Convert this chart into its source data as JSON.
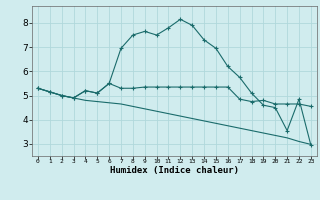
{
  "xlabel": "Humidex (Indice chaleur)",
  "bg_color": "#d0ecee",
  "grid_color": "#b0d8dc",
  "line_color": "#1a6b6b",
  "xlim": [
    -0.5,
    23.5
  ],
  "ylim": [
    2.5,
    8.7
  ],
  "xticks": [
    0,
    1,
    2,
    3,
    4,
    5,
    6,
    7,
    8,
    9,
    10,
    11,
    12,
    13,
    14,
    15,
    16,
    17,
    18,
    19,
    20,
    21,
    22,
    23
  ],
  "yticks": [
    3,
    4,
    5,
    6,
    7,
    8
  ],
  "line1_x": [
    0,
    1,
    2,
    3,
    4,
    5,
    6,
    7,
    8,
    9,
    10,
    11,
    12,
    13,
    14,
    15,
    16,
    17,
    18,
    19,
    20,
    21,
    22,
    23
  ],
  "line1_y": [
    5.3,
    5.15,
    5.0,
    4.9,
    5.2,
    5.1,
    5.5,
    5.3,
    5.3,
    5.35,
    5.35,
    5.35,
    5.35,
    5.35,
    5.35,
    5.35,
    5.35,
    4.85,
    4.75,
    4.8,
    4.65,
    4.65,
    4.65,
    4.55
  ],
  "line2_x": [
    0,
    1,
    2,
    3,
    4,
    5,
    6,
    7,
    8,
    9,
    10,
    11,
    12,
    13,
    14,
    15,
    16,
    17,
    18,
    19,
    20,
    21,
    22,
    23
  ],
  "line2_y": [
    5.3,
    5.15,
    5.0,
    4.9,
    5.2,
    5.1,
    5.5,
    6.95,
    7.5,
    7.65,
    7.5,
    7.8,
    8.15,
    7.9,
    7.3,
    6.95,
    6.2,
    5.75,
    5.1,
    4.6,
    4.5,
    3.55,
    4.85,
    2.95
  ],
  "line3_x": [
    0,
    1,
    2,
    3,
    4,
    5,
    6,
    7,
    8,
    9,
    10,
    11,
    12,
    13,
    14,
    15,
    16,
    17,
    18,
    19,
    20,
    21,
    22,
    23
  ],
  "line3_y": [
    5.3,
    5.15,
    5.0,
    4.9,
    4.8,
    4.75,
    4.7,
    4.65,
    4.55,
    4.45,
    4.35,
    4.25,
    4.15,
    4.05,
    3.95,
    3.85,
    3.75,
    3.65,
    3.55,
    3.45,
    3.35,
    3.25,
    3.1,
    2.98
  ]
}
